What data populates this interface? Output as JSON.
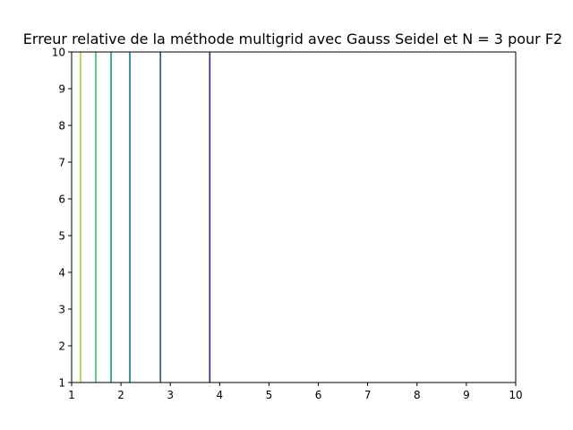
{
  "chart_data": {
    "type": "line",
    "title": "Erreur relative de la méthode multigrid avec Gauss Seidel et N = 3 pour F2",
    "xlabel": "",
    "ylabel": "",
    "xlim": [
      1,
      10
    ],
    "ylim": [
      1,
      10
    ],
    "xticks": [
      "1",
      "2",
      "3",
      "4",
      "5",
      "6",
      "7",
      "8",
      "9",
      "10"
    ],
    "yticks": [
      "1",
      "2",
      "3",
      "4",
      "5",
      "6",
      "7",
      "8",
      "9",
      "10"
    ],
    "grid": false,
    "legend": "none",
    "series": [
      {
        "x": [
          3.8,
          3.8
        ],
        "y": [
          1,
          10
        ],
        "color": "#3b2d6f"
      },
      {
        "x": [
          2.8,
          2.8
        ],
        "y": [
          1,
          10
        ],
        "color": "#31578c"
      },
      {
        "x": [
          2.18,
          2.18
        ],
        "y": [
          1,
          10
        ],
        "color": "#277f8e"
      },
      {
        "x": [
          1.8,
          1.8
        ],
        "y": [
          1,
          10
        ],
        "color": "#1fa187"
      },
      {
        "x": [
          1.49,
          1.49
        ],
        "y": [
          1,
          10
        ],
        "color": "#4ac16d"
      },
      {
        "x": [
          1.18,
          1.18
        ],
        "y": [
          1,
          10
        ],
        "color": "#a0da39"
      }
    ]
  }
}
